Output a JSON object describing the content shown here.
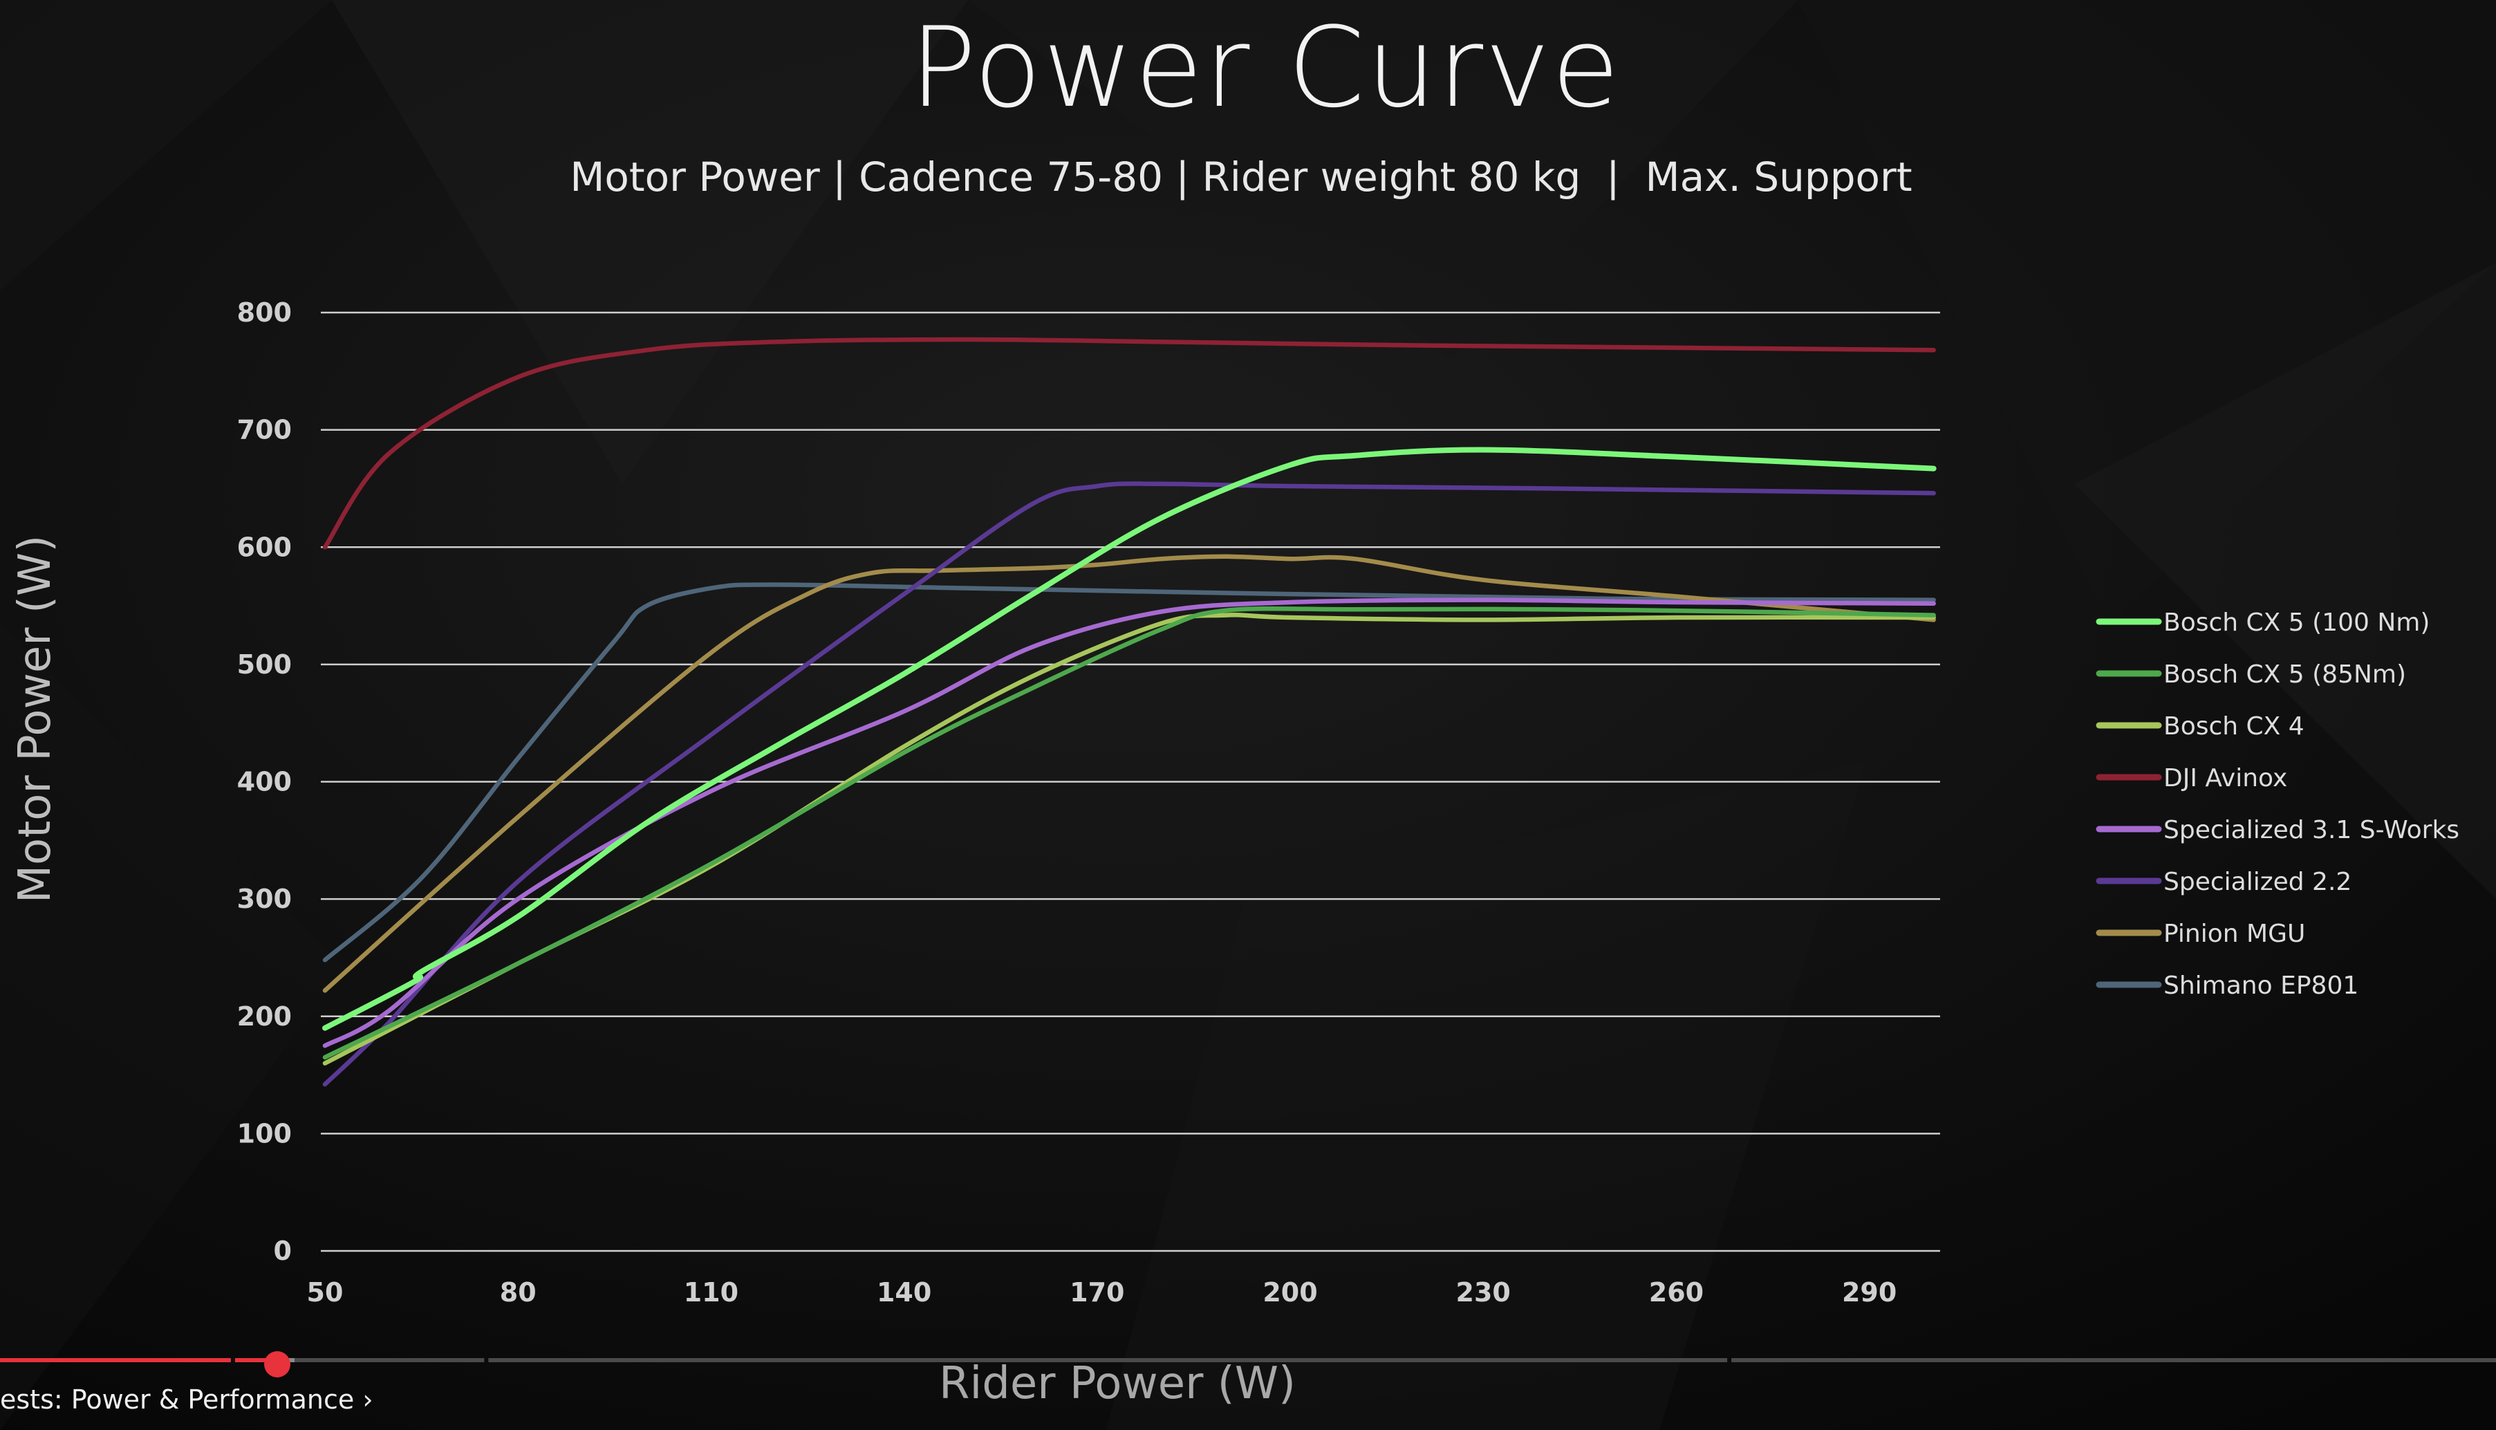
{
  "page": {
    "title": "Power Curve",
    "subtitle": "Motor Power | Cadence 75-80 | Rider weight 80 kg  |  Max. Support"
  },
  "player": {
    "chapter_label": "ests: Power & Performance ›",
    "progress": 0.111,
    "buffered": 0.118,
    "played_color": "#e8323c",
    "chapter_breaks": [
      0.0925,
      0.194,
      0.692
    ]
  },
  "chart_data": {
    "type": "line",
    "title": "Power Curve",
    "subtitle": "Motor Power | Cadence 75-80 | Rider weight 80 kg  |  Max. Support",
    "xlabel": "Rider Power (W)",
    "ylabel": "Motor Power (W)",
    "xlim": [
      50,
      301
    ],
    "ylim": [
      0,
      800
    ],
    "x_ticks": [
      50,
      80,
      110,
      140,
      170,
      200,
      230,
      260,
      290
    ],
    "y_ticks": [
      0,
      100,
      200,
      300,
      400,
      500,
      600,
      700,
      800
    ],
    "grid": "horizontal",
    "legend_position": "right",
    "series": [
      {
        "name": "Bosch CX 5 (100 Nm)",
        "color": "#7cf77a",
        "x": [
          50,
          64,
          65,
          80,
          100,
          120,
          140,
          160,
          180,
          200,
          210,
          230,
          260,
          300
        ],
        "y": [
          190,
          230,
          238,
          285,
          365,
          430,
          492,
          560,
          625,
          670,
          678,
          683,
          677,
          667
        ]
      },
      {
        "name": "Bosch CX 5 (85Nm)",
        "color": "#4ea84c",
        "x": [
          50,
          80,
          110,
          140,
          160,
          180,
          190,
          210,
          240,
          270,
          300
        ],
        "y": [
          165,
          245,
          330,
          425,
          480,
          530,
          546,
          547,
          547,
          545,
          542
        ]
      },
      {
        "name": "Bosch CX 4",
        "color": "#a7c65c",
        "x": [
          50,
          80,
          110,
          140,
          160,
          180,
          190,
          200,
          230,
          260,
          300
        ],
        "y": [
          160,
          245,
          328,
          430,
          490,
          535,
          542,
          540,
          538,
          540,
          540
        ]
      },
      {
        "name": "DJI Avinox",
        "color": "#8e2234",
        "x": [
          50,
          60,
          80,
          100,
          120,
          150,
          180,
          220,
          260,
          300
        ],
        "y": [
          600,
          680,
          745,
          768,
          775,
          777,
          775,
          772,
          770,
          768
        ]
      },
      {
        "name": "Specialized 3.1 S-Works",
        "color": "#a66ad1",
        "x": [
          50,
          60,
          80,
          110,
          140,
          160,
          180,
          200,
          230,
          260,
          300
        ],
        "y": [
          175,
          205,
          300,
          392,
          460,
          515,
          545,
          553,
          555,
          553,
          552
        ]
      },
      {
        "name": "Specialized 2.2",
        "color": "#5a3a94",
        "x": [
          50,
          60,
          80,
          110,
          140,
          160,
          170,
          180,
          200,
          240,
          300
        ],
        "y": [
          142,
          195,
          315,
          440,
          560,
          637,
          652,
          654,
          652,
          650,
          646
        ]
      },
      {
        "name": "Pinion MGU",
        "color": "#a38c4b",
        "x": [
          50,
          80,
          110,
          125,
          135,
          145,
          160,
          170,
          180,
          190,
          200,
          210,
          230,
          260,
          300
        ],
        "y": [
          222,
          370,
          510,
          560,
          578,
          580,
          582,
          585,
          590,
          592,
          590,
          590,
          572,
          558,
          538
        ]
      },
      {
        "name": "Shimano EP801",
        "color": "#4f6579",
        "x": [
          50,
          65,
          80,
          95,
          100,
          110,
          120,
          150,
          200,
          250,
          300
        ],
        "y": [
          248,
          318,
          420,
          520,
          550,
          565,
          568,
          565,
          560,
          556,
          555
        ]
      }
    ]
  }
}
